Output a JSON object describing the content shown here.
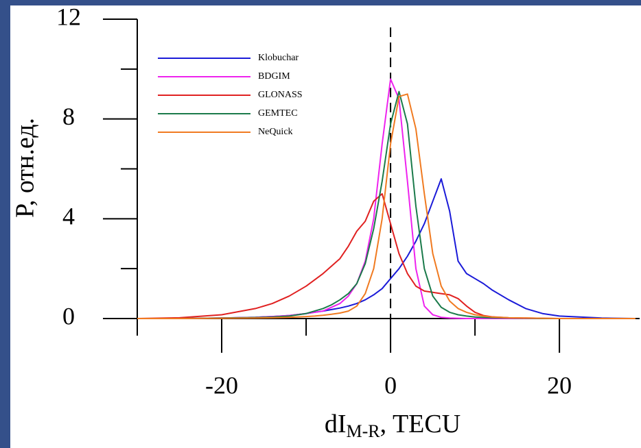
{
  "chart_data": {
    "type": "line",
    "y_label": "P, отн.ед.",
    "x_label": {
      "main": "dI",
      "subscript": "M-R",
      "suffix": ", TECU"
    },
    "x": [
      -30,
      -25,
      -20,
      -16,
      -14,
      -12,
      -10,
      -9,
      -8,
      -7,
      -6,
      -5,
      -4,
      -3,
      -2,
      -1,
      0,
      1,
      2,
      3,
      4,
      5,
      6,
      7,
      8,
      9,
      10,
      11,
      12,
      14,
      16,
      18,
      20,
      25,
      29
    ],
    "series": [
      {
        "name": "Klobuchar",
        "color": "#1a1ad8",
        "values": [
          0,
          0,
          0.02,
          0.05,
          0.08,
          0.12,
          0.2,
          0.25,
          0.3,
          0.36,
          0.42,
          0.5,
          0.6,
          0.75,
          0.95,
          1.2,
          1.6,
          2.0,
          2.5,
          3.1,
          3.8,
          4.7,
          5.6,
          4.3,
          2.3,
          1.8,
          1.6,
          1.4,
          1.15,
          0.75,
          0.4,
          0.2,
          0.1,
          0.02,
          0
        ]
      },
      {
        "name": "BDGIM",
        "color": "#ee22ee",
        "values": [
          0,
          0,
          0.02,
          0.05,
          0.08,
          0.12,
          0.2,
          0.25,
          0.3,
          0.45,
          0.6,
          0.9,
          1.4,
          2.3,
          4.0,
          7.0,
          9.6,
          8.8,
          5.5,
          2.0,
          0.5,
          0.15,
          0.05,
          0.02,
          0.01,
          0,
          0,
          0,
          0,
          0,
          0,
          0,
          0,
          0,
          0
        ]
      },
      {
        "name": "GLONASS",
        "color": "#e02020",
        "values": [
          0,
          0.03,
          0.15,
          0.4,
          0.6,
          0.9,
          1.3,
          1.55,
          1.8,
          2.1,
          2.4,
          2.9,
          3.5,
          3.9,
          4.7,
          5.0,
          3.8,
          2.6,
          1.8,
          1.3,
          1.1,
          1.05,
          1.0,
          0.95,
          0.8,
          0.5,
          0.25,
          0.12,
          0.07,
          0.03,
          0.02,
          0.01,
          0,
          0,
          0
        ]
      },
      {
        "name": "GEMTEC",
        "color": "#1a7a4a",
        "values": [
          0,
          0,
          0.02,
          0.04,
          0.06,
          0.1,
          0.2,
          0.3,
          0.4,
          0.55,
          0.75,
          1.0,
          1.4,
          2.2,
          3.6,
          5.5,
          7.8,
          9.1,
          7.8,
          4.5,
          2.0,
          0.9,
          0.45,
          0.25,
          0.15,
          0.1,
          0.06,
          0.04,
          0.03,
          0.02,
          0.01,
          0,
          0,
          0,
          0
        ]
      },
      {
        "name": "NeQuick",
        "color": "#f07a20",
        "values": [
          0,
          0,
          0.01,
          0.02,
          0.03,
          0.05,
          0.08,
          0.1,
          0.13,
          0.17,
          0.22,
          0.3,
          0.5,
          1.0,
          2.0,
          4.0,
          7.0,
          8.9,
          9.0,
          7.6,
          5.0,
          2.6,
          1.3,
          0.7,
          0.4,
          0.25,
          0.15,
          0.1,
          0.06,
          0.03,
          0.02,
          0.01,
          0,
          0,
          0
        ]
      }
    ],
    "xlim": [
      -30,
      29.5
    ],
    "xticks": [
      -20,
      0,
      20
    ],
    "xminor_ticks": [
      -30,
      -10,
      10
    ],
    "ylim": [
      0,
      12
    ],
    "yticks": [
      0,
      4,
      8,
      12
    ],
    "yminor_ticks": [
      2,
      6,
      10
    ],
    "reference_line_x": 0,
    "legend": "upper-left"
  }
}
